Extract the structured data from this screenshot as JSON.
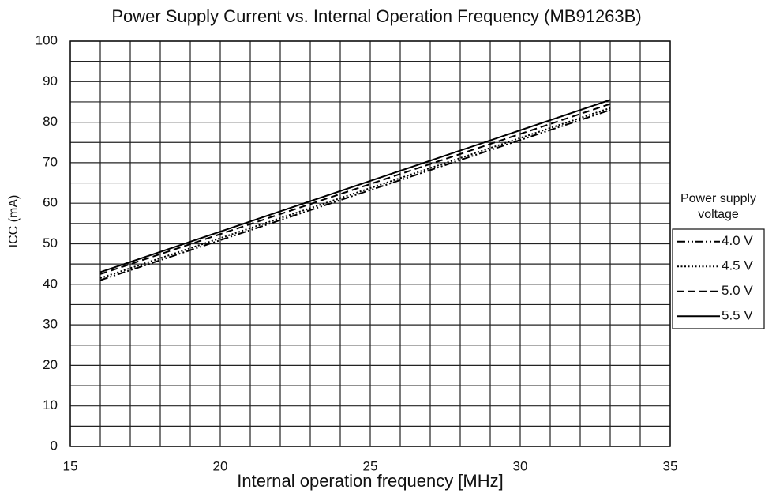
{
  "chart_data": {
    "type": "line",
    "title": "Power Supply Current vs. Internal Operation Frequency (MB91263B)",
    "xlabel": "Internal operation frequency [MHz]",
    "ylabel": "ICC (mA)",
    "legend_title": [
      "Power supply",
      "voltage"
    ],
    "legend": "right",
    "x": [
      16,
      33
    ],
    "series": [
      {
        "name": "4.0 V",
        "color": "#000000",
        "dash": "dash-dot-dot",
        "values": [
          41,
          83
        ]
      },
      {
        "name": "4.5 V",
        "color": "#000000",
        "dash": "dotted",
        "values": [
          41.5,
          83.5
        ]
      },
      {
        "name": "5.0 V",
        "color": "#000000",
        "dash": "dashed",
        "values": [
          42.5,
          84.5
        ]
      },
      {
        "name": "5.5 V",
        "color": "#000000",
        "dash": "solid",
        "values": [
          43,
          85.5
        ]
      }
    ],
    "xlim": [
      15,
      35
    ],
    "xticks": [
      15,
      20,
      25,
      30,
      35
    ],
    "xminorticks": [
      16,
      17,
      18,
      19,
      21,
      22,
      23,
      24,
      26,
      27,
      28,
      29,
      31,
      32,
      33,
      34
    ],
    "ylim": [
      0,
      100
    ],
    "yticks": [
      0,
      10,
      20,
      30,
      40,
      50,
      60,
      70,
      80,
      90,
      100
    ],
    "yminorticks": [
      5,
      15,
      25,
      35,
      45,
      55,
      65,
      75,
      85,
      95
    ],
    "grid": true
  }
}
